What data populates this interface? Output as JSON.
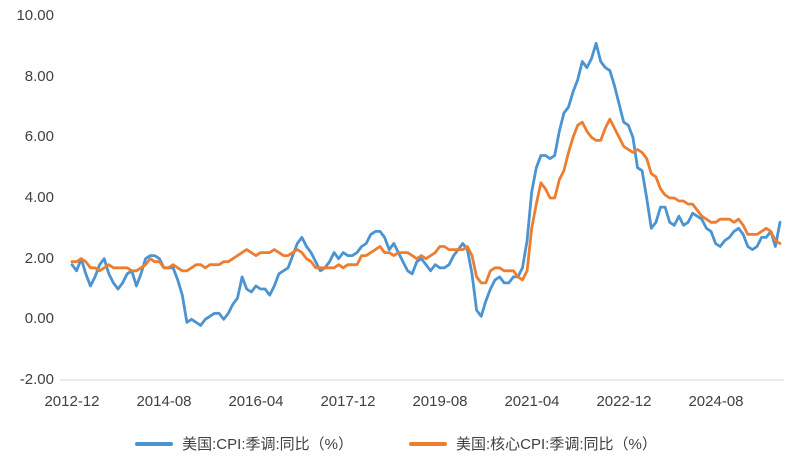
{
  "chart_data": {
    "type": "line",
    "title": "",
    "xlabel": "",
    "ylabel": "",
    "grid": false,
    "legend_position": "bottom",
    "ylim": [
      -2,
      10
    ],
    "y_tick_labels": [
      "10.00",
      "8.00",
      "6.00",
      "4.00",
      "2.00",
      "0.00",
      "-2.00"
    ],
    "x_tick_labels": [
      "2012-12",
      "2014-08",
      "2016-04",
      "2017-12",
      "2019-08",
      "2021-04",
      "2022-12",
      "2024-08"
    ],
    "x_frequency": "monthly",
    "x_tick_interval_months": 20,
    "series": [
      {
        "key": "cpi",
        "name": "美国:CPI:季调:同比（%）",
        "color": "#4b93d1",
        "values": [
          1.8,
          1.6,
          2.0,
          1.5,
          1.1,
          1.4,
          1.8,
          2.0,
          1.5,
          1.2,
          1.0,
          1.2,
          1.5,
          1.6,
          1.1,
          1.5,
          2.0,
          2.1,
          2.1,
          2.0,
          1.7,
          1.7,
          1.7,
          1.3,
          0.8,
          -0.1,
          0.0,
          -0.1,
          -0.2,
          0.0,
          0.1,
          0.2,
          0.2,
          0.0,
          0.2,
          0.5,
          0.7,
          1.4,
          1.0,
          0.9,
          1.1,
          1.0,
          1.0,
          0.8,
          1.1,
          1.5,
          1.6,
          1.7,
          2.1,
          2.5,
          2.7,
          2.4,
          2.2,
          1.9,
          1.6,
          1.7,
          1.9,
          2.2,
          2.0,
          2.2,
          2.1,
          2.1,
          2.2,
          2.4,
          2.5,
          2.8,
          2.9,
          2.9,
          2.7,
          2.3,
          2.5,
          2.2,
          1.9,
          1.6,
          1.5,
          1.9,
          2.0,
          1.8,
          1.6,
          1.8,
          1.7,
          1.7,
          1.8,
          2.1,
          2.3,
          2.5,
          2.3,
          1.5,
          0.3,
          0.1,
          0.6,
          1.0,
          1.3,
          1.4,
          1.2,
          1.2,
          1.4,
          1.4,
          1.7,
          2.6,
          4.2,
          5.0,
          5.4,
          5.4,
          5.3,
          5.4,
          6.2,
          6.8,
          7.0,
          7.5,
          7.9,
          8.5,
          8.3,
          8.6,
          9.1,
          8.5,
          8.3,
          8.2,
          7.7,
          7.1,
          6.5,
          6.4,
          6.0,
          5.0,
          4.9,
          4.0,
          3.0,
          3.2,
          3.7,
          3.7,
          3.2,
          3.1,
          3.4,
          3.1,
          3.2,
          3.5,
          3.4,
          3.3,
          3.0,
          2.9,
          2.5,
          2.4,
          2.6,
          2.7,
          2.9,
          3.0,
          2.8,
          2.4,
          2.3,
          2.4,
          2.7,
          2.7,
          2.9,
          2.4,
          3.2
        ]
      },
      {
        "key": "core-cpi",
        "name": "美国:核心CPI:季调:同比（%）",
        "color": "#ED7D31",
        "values": [
          1.9,
          1.9,
          2.0,
          1.9,
          1.7,
          1.7,
          1.6,
          1.7,
          1.8,
          1.7,
          1.7,
          1.7,
          1.7,
          1.6,
          1.6,
          1.7,
          1.8,
          2.0,
          1.9,
          1.9,
          1.7,
          1.7,
          1.8,
          1.7,
          1.6,
          1.6,
          1.7,
          1.8,
          1.8,
          1.7,
          1.8,
          1.8,
          1.8,
          1.9,
          1.9,
          2.0,
          2.1,
          2.2,
          2.3,
          2.2,
          2.1,
          2.2,
          2.2,
          2.2,
          2.3,
          2.2,
          2.1,
          2.1,
          2.2,
          2.3,
          2.2,
          2.0,
          1.9,
          1.7,
          1.7,
          1.7,
          1.7,
          1.7,
          1.8,
          1.7,
          1.8,
          1.8,
          1.8,
          2.1,
          2.1,
          2.2,
          2.3,
          2.4,
          2.2,
          2.2,
          2.1,
          2.2,
          2.2,
          2.2,
          2.1,
          2.0,
          2.1,
          2.0,
          2.1,
          2.2,
          2.4,
          2.4,
          2.3,
          2.3,
          2.3,
          2.3,
          2.4,
          2.1,
          1.4,
          1.2,
          1.2,
          1.6,
          1.7,
          1.7,
          1.6,
          1.6,
          1.6,
          1.4,
          1.3,
          1.6,
          3.0,
          3.8,
          4.5,
          4.3,
          4.0,
          4.0,
          4.6,
          4.9,
          5.5,
          6.0,
          6.4,
          6.5,
          6.2,
          6.0,
          5.9,
          5.9,
          6.3,
          6.6,
          6.3,
          6.0,
          5.7,
          5.6,
          5.5,
          5.6,
          5.5,
          5.3,
          4.8,
          4.7,
          4.3,
          4.1,
          4.0,
          4.0,
          3.9,
          3.9,
          3.8,
          3.8,
          3.6,
          3.4,
          3.3,
          3.2,
          3.2,
          3.3,
          3.3,
          3.3,
          3.2,
          3.3,
          3.1,
          2.8,
          2.8,
          2.8,
          2.9,
          3.0,
          2.9,
          2.6,
          2.5
        ]
      }
    ],
    "axis_line_color": "#d6d6d6",
    "text_color": "#404040"
  }
}
